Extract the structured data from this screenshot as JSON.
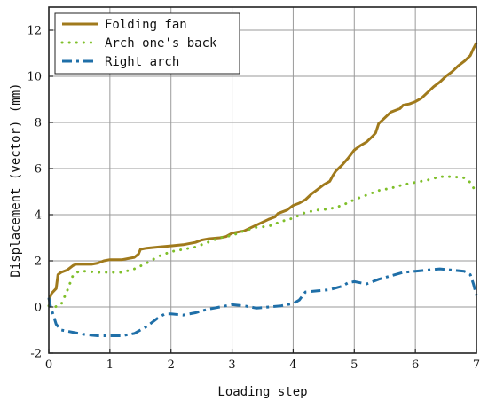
{
  "chart_data": {
    "type": "line",
    "title": "",
    "xlabel": "Loading step",
    "ylabel": "Displacement (vector) (mm)",
    "xlim": [
      0,
      7
    ],
    "ylim": [
      -2,
      13
    ],
    "xticks": [
      0,
      1,
      2,
      3,
      4,
      5,
      6,
      7
    ],
    "yticks": [
      -2,
      0,
      2,
      4,
      6,
      8,
      10,
      12
    ],
    "grid": true,
    "legend_position": "top-left",
    "series": [
      {
        "name": "Folding fan",
        "color": "#a07a1c",
        "style": "solid",
        "x": [
          0,
          0.05,
          0.12,
          0.15,
          0.2,
          0.3,
          0.4,
          0.45,
          0.7,
          0.8,
          0.9,
          1.0,
          1.2,
          1.4,
          1.47,
          1.5,
          1.6,
          1.8,
          2.0,
          2.2,
          2.4,
          2.5,
          2.6,
          2.8,
          2.9,
          3.0,
          3.2,
          3.4,
          3.6,
          3.7,
          3.75,
          3.9,
          4.0,
          4.1,
          4.2,
          4.3,
          4.4,
          4.5,
          4.6,
          4.65,
          4.7,
          4.8,
          4.9,
          5.0,
          5.1,
          5.2,
          5.3,
          5.35,
          5.4,
          5.5,
          5.6,
          5.75,
          5.8,
          5.9,
          6.0,
          6.1,
          6.2,
          6.3,
          6.4,
          6.5,
          6.6,
          6.7,
          6.8,
          6.9,
          6.95,
          7.0
        ],
        "y": [
          0.3,
          0.6,
          0.8,
          1.4,
          1.5,
          1.6,
          1.8,
          1.85,
          1.85,
          1.9,
          2.0,
          2.05,
          2.05,
          2.15,
          2.3,
          2.5,
          2.55,
          2.6,
          2.65,
          2.7,
          2.8,
          2.9,
          2.95,
          3.0,
          3.05,
          3.2,
          3.3,
          3.55,
          3.8,
          3.9,
          4.05,
          4.2,
          4.4,
          4.5,
          4.65,
          4.9,
          5.1,
          5.3,
          5.45,
          5.7,
          5.9,
          6.15,
          6.45,
          6.8,
          7.0,
          7.15,
          7.4,
          7.55,
          7.95,
          8.2,
          8.45,
          8.6,
          8.75,
          8.8,
          8.9,
          9.05,
          9.3,
          9.55,
          9.75,
          10.0,
          10.2,
          10.45,
          10.65,
          10.9,
          11.2,
          11.45
        ]
      },
      {
        "name": "Arch one's back",
        "color": "#7fbf2a",
        "style": "dotted",
        "x": [
          0,
          0.1,
          0.2,
          0.3,
          0.4,
          0.5,
          0.6,
          0.8,
          1.0,
          1.2,
          1.4,
          1.6,
          1.8,
          2.0,
          2.2,
          2.4,
          2.6,
          2.8,
          3.0,
          3.2,
          3.4,
          3.6,
          3.8,
          4.0,
          4.2,
          4.4,
          4.6,
          4.8,
          5.0,
          5.2,
          5.4,
          5.6,
          5.8,
          6.0,
          6.2,
          6.4,
          6.6,
          6.8,
          6.9,
          7.0
        ],
        "y": [
          0.05,
          0.0,
          0.1,
          0.7,
          1.4,
          1.55,
          1.55,
          1.5,
          1.5,
          1.5,
          1.65,
          1.9,
          2.2,
          2.4,
          2.5,
          2.6,
          2.8,
          3.0,
          3.1,
          3.3,
          3.45,
          3.5,
          3.7,
          3.85,
          4.1,
          4.2,
          4.25,
          4.4,
          4.65,
          4.85,
          5.05,
          5.15,
          5.3,
          5.4,
          5.5,
          5.65,
          5.65,
          5.6,
          5.4,
          4.95
        ]
      },
      {
        "name": "Right arch",
        "color": "#1f6fa8",
        "style": "dashdot",
        "x": [
          0,
          0.03,
          0.08,
          0.12,
          0.2,
          0.4,
          0.6,
          0.8,
          1.0,
          1.2,
          1.4,
          1.6,
          1.8,
          1.9,
          2.0,
          2.2,
          2.4,
          2.6,
          2.8,
          3.0,
          3.2,
          3.4,
          3.6,
          3.8,
          4.0,
          4.1,
          4.2,
          4.4,
          4.6,
          4.8,
          4.9,
          5.0,
          5.2,
          5.4,
          5.6,
          5.8,
          6.0,
          6.2,
          6.4,
          6.6,
          6.8,
          6.9,
          6.95,
          7.0
        ],
        "y": [
          0.4,
          0.0,
          -0.4,
          -0.75,
          -1.0,
          -1.1,
          -1.2,
          -1.25,
          -1.25,
          -1.25,
          -1.15,
          -0.85,
          -0.45,
          -0.3,
          -0.3,
          -0.35,
          -0.25,
          -0.1,
          0.0,
          0.1,
          0.05,
          -0.05,
          0.0,
          0.05,
          0.15,
          0.3,
          0.65,
          0.7,
          0.75,
          0.9,
          1.05,
          1.1,
          1.0,
          1.2,
          1.35,
          1.5,
          1.55,
          1.6,
          1.65,
          1.6,
          1.55,
          1.4,
          1.0,
          0.5
        ]
      }
    ]
  }
}
